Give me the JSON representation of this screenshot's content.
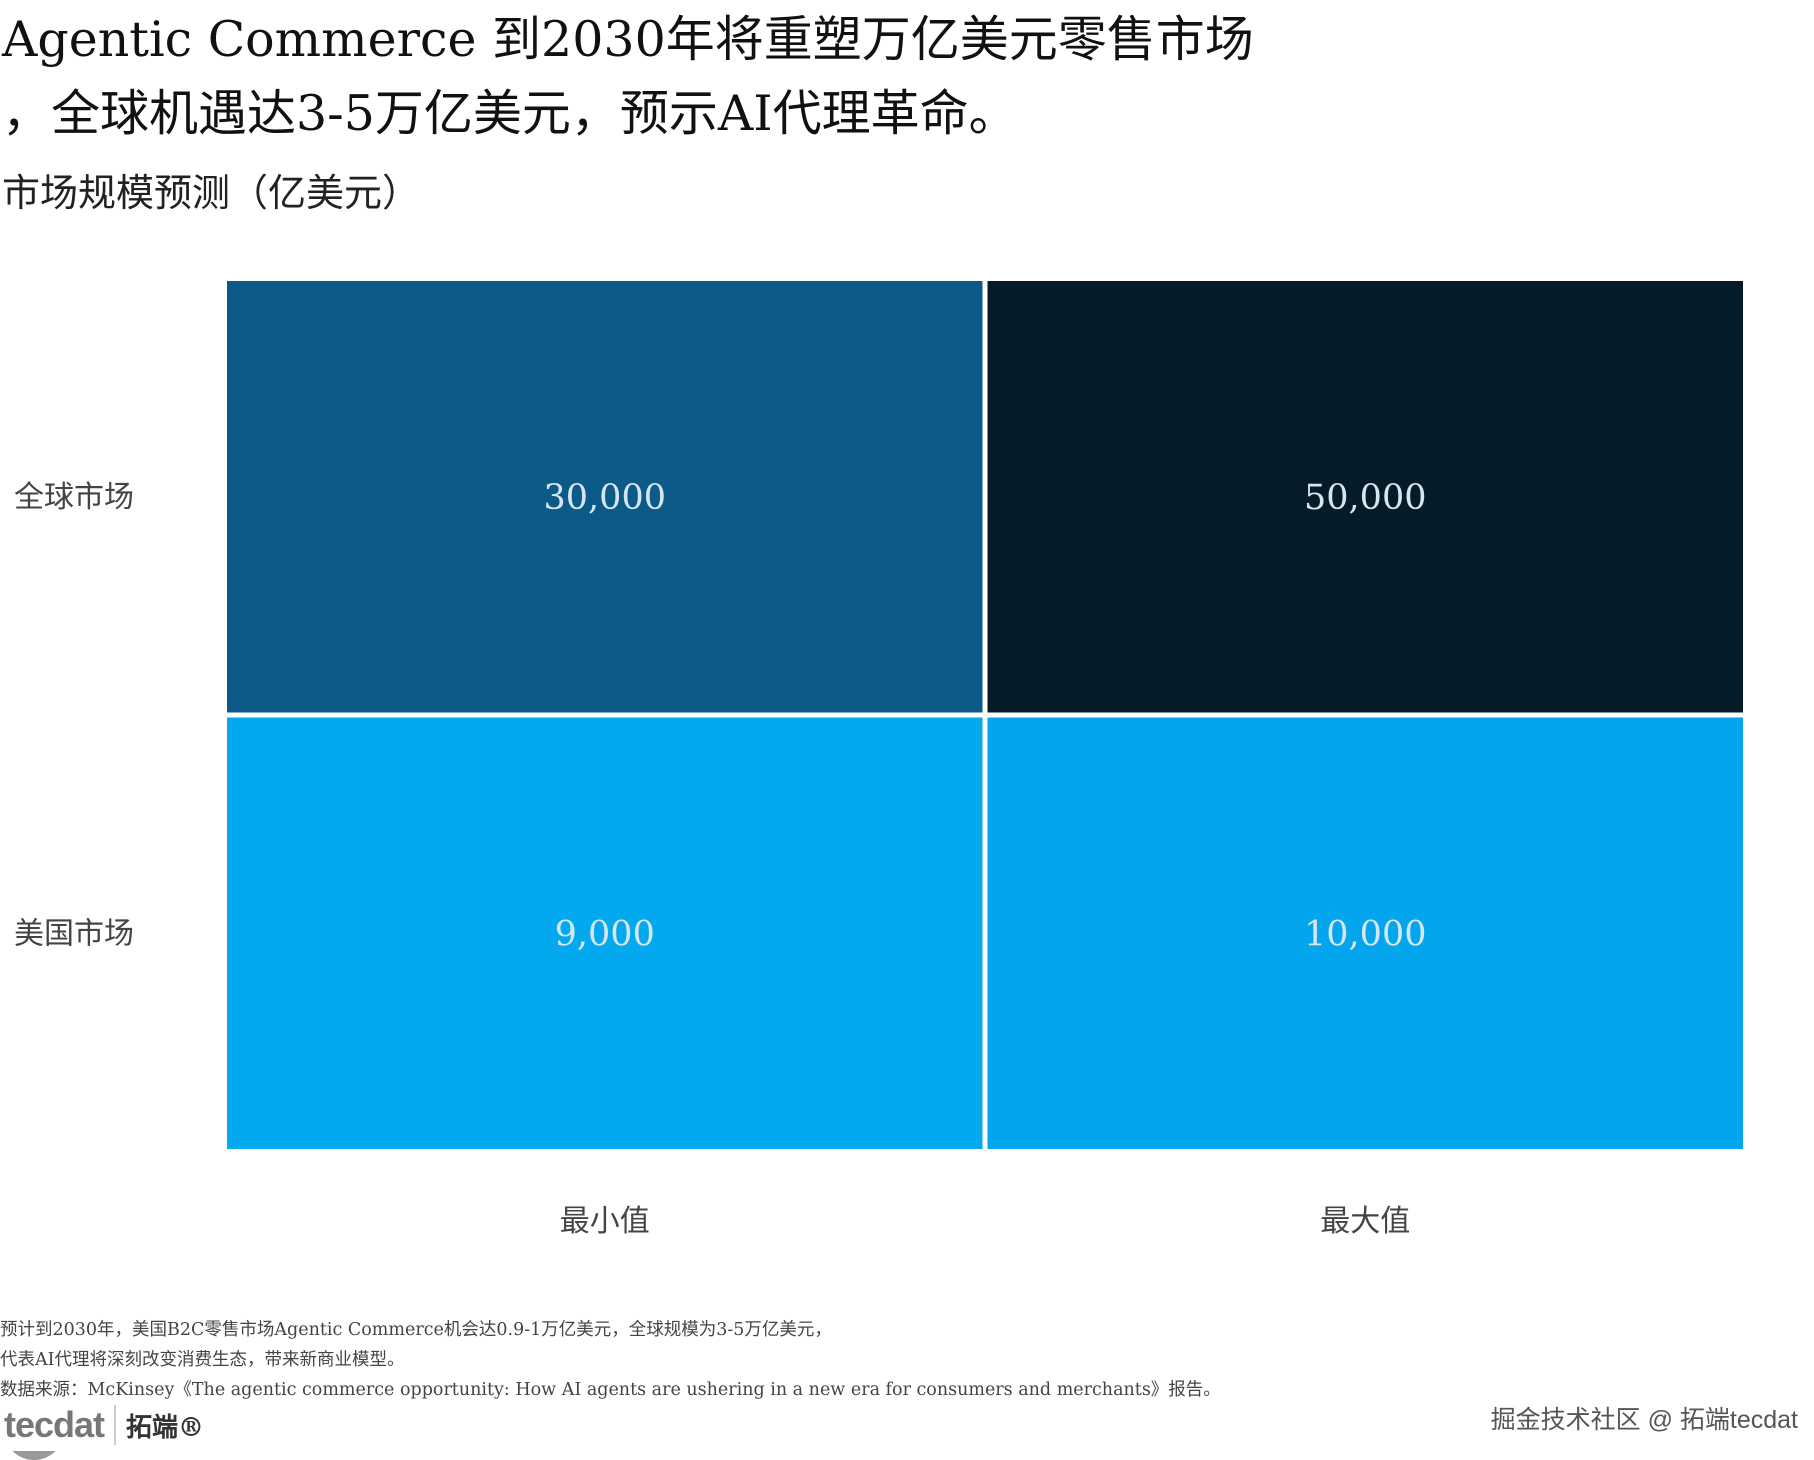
{
  "title_line1": "Agentic Commerce 到2030年将重塑万亿美元零售市场",
  "title_line2": "，全球机遇达3-5万亿美元，预示AI代理革命。",
  "chart_data": {
    "type": "heatmap",
    "title": "市场规模预测（亿美元）",
    "rows": [
      "全球市场",
      "美国市场"
    ],
    "columns": [
      "最小值",
      "最大值"
    ],
    "values": [
      [
        30000,
        50000
      ],
      [
        9000,
        10000
      ]
    ],
    "labels": [
      [
        "30,000",
        "50,000"
      ],
      [
        "9,000",
        "10,000"
      ]
    ],
    "colors": [
      [
        "#0B5A87",
        "#061B28"
      ],
      [
        "#03A9EE",
        "#03A6EC"
      ]
    ]
  },
  "footer": {
    "note1": "预计到2030年，美国B2C零售市场Agentic Commerce机会达0.9-1万亿美元，全球规模为3-5万亿美元，",
    "note2": "代表AI代理将深刻改变消费生态，带来新商业模型。",
    "source": "数据来源：McKinsey《The agentic commerce opportunity: How AI agents are ushering in a new era for consumers and merchants》报告。"
  },
  "logo": {
    "text": "tecdat",
    "cn": "拓端®"
  },
  "watermark": "掘金技术社区 @ 拓端tecdat"
}
